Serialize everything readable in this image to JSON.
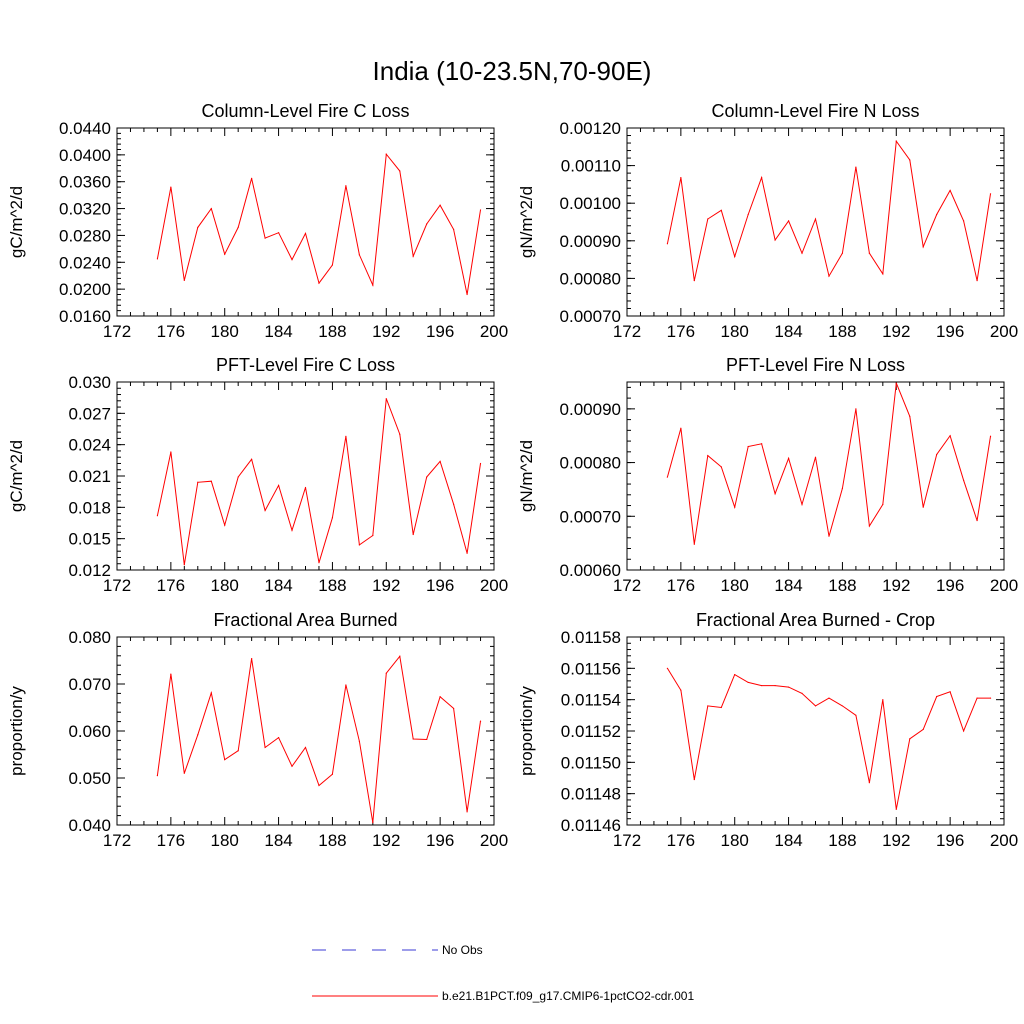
{
  "figure": {
    "title": "India (10-23.5N,70-90E)"
  },
  "colors": {
    "series": "#ff0000",
    "obs": "#3b3bd6",
    "axis": "#000000"
  },
  "legend": {
    "placement": "bottom-center",
    "entries": [
      {
        "label": "No Obs",
        "color": "#3b3bd6",
        "style": "dashed"
      },
      {
        "label": "b.e21.B1PCT.f09_g17.CMIP6-1pctCO2-cdr.001",
        "color": "#ff0000",
        "style": "solid"
      }
    ]
  },
  "chart_data": [
    {
      "type": "line",
      "title": "Column-Level Fire C Loss",
      "ylabel": "gC/m^2/d",
      "xlim": [
        172,
        200
      ],
      "ylim": [
        0.016,
        0.044
      ],
      "xticks": [
        "172",
        "176",
        "180",
        "184",
        "188",
        "192",
        "196",
        "200"
      ],
      "yticks": [
        "0.0160",
        "0.0200",
        "0.0240",
        "0.0280",
        "0.0320",
        "0.0360",
        "0.0400",
        "0.0440"
      ],
      "x": [
        175,
        176,
        177,
        178,
        179,
        180,
        181,
        182,
        183,
        184,
        185,
        186,
        187,
        188,
        189,
        190,
        191,
        192,
        193,
        194,
        195,
        196,
        197,
        198,
        199
      ],
      "values": [
        0.0245,
        0.0352,
        0.0213,
        0.0292,
        0.032,
        0.0252,
        0.0292,
        0.0365,
        0.0276,
        0.0284,
        0.0244,
        0.0283,
        0.0209,
        0.0236,
        0.0354,
        0.0251,
        0.0206,
        0.0401,
        0.0376,
        0.0249,
        0.0297,
        0.0325,
        0.0289,
        0.0192,
        0.0318
      ]
    },
    {
      "type": "line",
      "title": "Column-Level Fire N Loss",
      "ylabel": "gN/m^2/d",
      "xlim": [
        172,
        200
      ],
      "ylim": [
        0.0007,
        0.0012
      ],
      "xticks": [
        "172",
        "176",
        "180",
        "184",
        "188",
        "192",
        "196",
        "200"
      ],
      "yticks": [
        "0.00070",
        "0.00080",
        "0.00090",
        "0.00100",
        "0.00110",
        "0.00120"
      ],
      "x": [
        175,
        176,
        177,
        178,
        179,
        180,
        181,
        182,
        183,
        184,
        185,
        186,
        187,
        188,
        189,
        190,
        191,
        192,
        193,
        194,
        195,
        196,
        197,
        198,
        199
      ],
      "values": [
        0.000892,
        0.001068,
        0.000794,
        0.000958,
        0.000981,
        0.000858,
        0.00097,
        0.001068,
        0.000902,
        0.000953,
        0.000867,
        0.000958,
        0.000806,
        0.000867,
        0.001096,
        0.000867,
        0.000812,
        0.001165,
        0.001115,
        0.000884,
        0.00097,
        0.001034,
        0.000953,
        0.000794,
        0.001025
      ]
    },
    {
      "type": "line",
      "title": "PFT-Level Fire C Loss",
      "ylabel": "gC/m^2/d",
      "xlim": [
        172,
        200
      ],
      "ylim": [
        0.012,
        0.03
      ],
      "xticks": [
        "172",
        "176",
        "180",
        "184",
        "188",
        "192",
        "196",
        "200"
      ],
      "yticks": [
        "0.012",
        "0.015",
        "0.018",
        "0.021",
        "0.024",
        "0.027",
        "0.030"
      ],
      "x": [
        175,
        176,
        177,
        178,
        179,
        180,
        181,
        182,
        183,
        184,
        185,
        186,
        187,
        188,
        189,
        190,
        191,
        192,
        193,
        194,
        195,
        196,
        197,
        198,
        199
      ],
      "values": [
        0.0172,
        0.0233,
        0.0125,
        0.0204,
        0.0205,
        0.0163,
        0.0209,
        0.0226,
        0.0177,
        0.0201,
        0.0158,
        0.0199,
        0.0127,
        0.017,
        0.0248,
        0.0144,
        0.0153,
        0.0284,
        0.025,
        0.0154,
        0.0209,
        0.0224,
        0.0183,
        0.0136,
        0.0222
      ]
    },
    {
      "type": "line",
      "title": "PFT-Level Fire N Loss",
      "ylabel": "gN/m^2/d",
      "xlim": [
        172,
        200
      ],
      "ylim": [
        0.0006,
        0.00095
      ],
      "xticks": [
        "172",
        "176",
        "180",
        "184",
        "188",
        "192",
        "196",
        "200"
      ],
      "yticks": [
        "0.00060",
        "0.00070",
        "0.00080",
        "0.00090"
      ],
      "x": [
        175,
        176,
        177,
        178,
        179,
        180,
        181,
        182,
        183,
        184,
        185,
        186,
        187,
        188,
        189,
        190,
        191,
        192,
        193,
        194,
        195,
        196,
        197,
        198,
        199
      ],
      "values": [
        0.000773,
        0.000864,
        0.000648,
        0.000813,
        0.000792,
        0.000717,
        0.00083,
        0.000835,
        0.000742,
        0.000808,
        0.000722,
        0.00081,
        0.000663,
        0.000752,
        0.0009,
        0.000682,
        0.000722,
        0.000948,
        0.000886,
        0.000717,
        0.000815,
        0.00085,
        0.000767,
        0.000692,
        0.000849
      ]
    },
    {
      "type": "line",
      "title": "Fractional Area Burned",
      "ylabel": "proportion/y",
      "xlim": [
        172,
        200
      ],
      "ylim": [
        0.04,
        0.08
      ],
      "xticks": [
        "172",
        "176",
        "180",
        "184",
        "188",
        "192",
        "196",
        "200"
      ],
      "yticks": [
        "0.040",
        "0.050",
        "0.060",
        "0.070",
        "0.080"
      ],
      "x": [
        175,
        176,
        177,
        178,
        179,
        180,
        181,
        182,
        183,
        184,
        185,
        186,
        187,
        188,
        189,
        190,
        191,
        192,
        193,
        194,
        195,
        196,
        197,
        198,
        199
      ],
      "values": [
        0.0505,
        0.0721,
        0.051,
        0.0592,
        0.0681,
        0.0539,
        0.0558,
        0.0754,
        0.0565,
        0.0586,
        0.0525,
        0.0565,
        0.0484,
        0.0508,
        0.0698,
        0.0578,
        0.0405,
        0.0723,
        0.0759,
        0.0583,
        0.0582,
        0.0673,
        0.0648,
        0.0428,
        0.0621
      ]
    },
    {
      "type": "line",
      "title": "Fractional Area Burned - Crop",
      "ylabel": "proportion/y",
      "xlim": [
        172,
        200
      ],
      "ylim": [
        0.01146,
        0.01158
      ],
      "xticks": [
        "172",
        "176",
        "180",
        "184",
        "188",
        "192",
        "196",
        "200"
      ],
      "yticks": [
        "0.01146",
        "0.01148",
        "0.01150",
        "0.01152",
        "0.01154",
        "0.01156",
        "0.01158"
      ],
      "x": [
        175,
        176,
        177,
        178,
        179,
        180,
        181,
        182,
        183,
        184,
        185,
        186,
        187,
        188,
        189,
        190,
        191,
        192,
        193,
        194,
        195,
        196,
        197,
        198,
        199
      ],
      "values": [
        0.01156,
        0.011546,
        0.011489,
        0.011536,
        0.011535,
        0.011556,
        0.011551,
        0.011549,
        0.011549,
        0.011548,
        0.011544,
        0.011536,
        0.011541,
        0.011536,
        0.01153,
        0.011487,
        0.01154,
        0.01147,
        0.011515,
        0.011521,
        0.011542,
        0.011545,
        0.01152,
        0.011541,
        0.011541
      ]
    }
  ]
}
